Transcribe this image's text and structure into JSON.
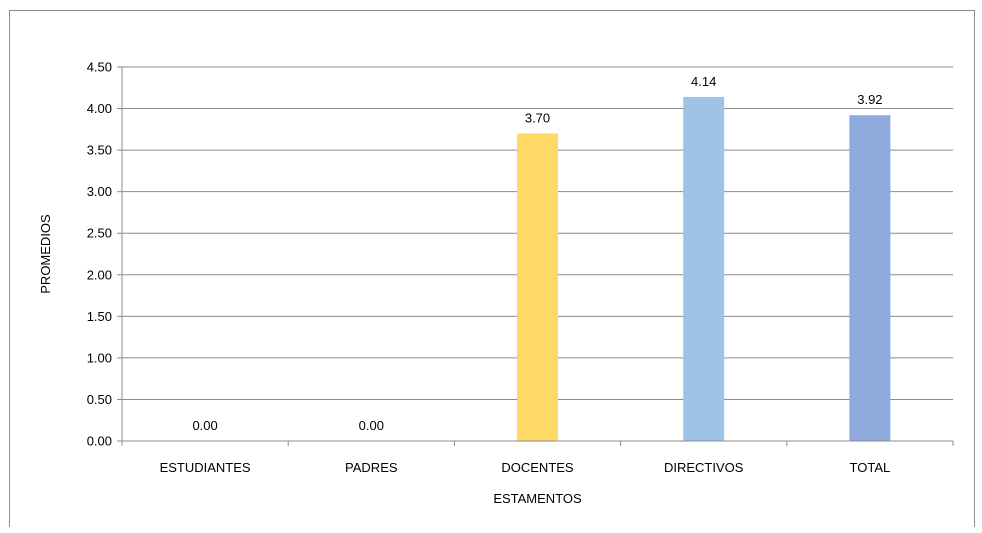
{
  "chart_data": {
    "type": "bar",
    "title": "",
    "xlabel": "ESTAMENTOS",
    "ylabel": "PROMEDIOS",
    "categories": [
      "ESTUDIANTES",
      "PADRES",
      "DOCENTES",
      "DIRECTIVOS",
      "TOTAL"
    ],
    "values": [
      0.0,
      0.0,
      3.7,
      4.14,
      3.92
    ],
    "data_labels": [
      "0.00",
      "0.00",
      "3.70",
      "4.14",
      "3.92"
    ],
    "bar_colors": [
      "#5b9bd5",
      "#ed7d31",
      "#ffd966",
      "#9dc3e6",
      "#8faadc"
    ],
    "ylim": [
      0,
      4.5
    ],
    "yticks": [
      "0.00",
      "0.50",
      "1.00",
      "1.50",
      "2.00",
      "2.50",
      "3.00",
      "3.50",
      "4.00",
      "4.50"
    ],
    "ytick_values": [
      0,
      0.5,
      1,
      1.5,
      2,
      2.5,
      3,
      3.5,
      4,
      4.5
    ],
    "grid": true,
    "legend": "none"
  }
}
